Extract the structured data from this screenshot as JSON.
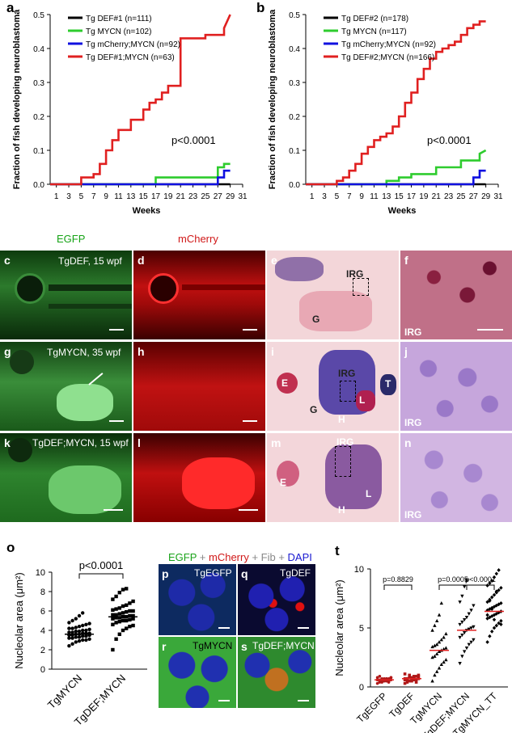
{
  "panels": {
    "a": {
      "label": "a",
      "ylabel": "Fraction of fish developing neuroblastoma",
      "xlabel": "Weeks",
      "pvalue": "p<0.0001",
      "legend": [
        {
          "text": "Tg DEF#1 (n=111)",
          "color": "#000000"
        },
        {
          "text": "Tg MYCN (n=102)",
          "color": "#2ecc2e"
        },
        {
          "text": "Tg mCherry;MYCN (n=92)",
          "color": "#1010e0"
        },
        {
          "text": "Tg DEF#1;MYCN (n=63)",
          "color": "#e02020"
        }
      ]
    },
    "b": {
      "label": "b",
      "ylabel": "Fraction of fish developing neuroblastoma",
      "xlabel": "Weeks",
      "pvalue": "p<0.0001",
      "legend": [
        {
          "text": "Tg DEF#2 (n=178)",
          "color": "#000000"
        },
        {
          "text": "Tg MYCN (n=117)",
          "color": "#2ecc2e"
        },
        {
          "text": "Tg mCherry;MYCN (n=92)",
          "color": "#1010e0"
        },
        {
          "text": "Tg DEF#2;MYCN (n=166)",
          "color": "#e02020"
        }
      ]
    },
    "images": {
      "egfp_header": "EGFP",
      "mcherry_header": "mCherry",
      "c": {
        "label": "c",
        "caption": "TgDEF, 15 wpf"
      },
      "d": {
        "label": "d"
      },
      "e": {
        "label": "e",
        "irg": "IRG",
        "g": "G"
      },
      "f": {
        "label": "f",
        "irg": "IRG"
      },
      "g": {
        "label": "g",
        "caption": "TgMYCN, 35 wpf"
      },
      "h": {
        "label": "h"
      },
      "i": {
        "label": "i",
        "irg": "IRG",
        "e": "E",
        "g": "G",
        "h": "H",
        "l": "L",
        "t": "T"
      },
      "j": {
        "label": "j",
        "irg": "IRG"
      },
      "k": {
        "label": "k",
        "caption": "TgDEF;MYCN, 15 wpf"
      },
      "l": {
        "label": "l"
      },
      "m": {
        "label": "m",
        "irg": "IRG",
        "e": "E",
        "h": "H",
        "l": "L"
      },
      "n": {
        "label": "n",
        "irg": "IRG"
      }
    },
    "o": {
      "label": "o",
      "ylabel": "Nucleolar area (μm²)",
      "pvalue": "p<0.0001"
    },
    "pqrs": {
      "title_egfp": "EGFP",
      "title_plus1": " + ",
      "title_mcherry": "mCherry",
      "title_plus2": " + Fib + ",
      "title_dapi": "DAPI",
      "p": {
        "label": "p",
        "caption": "TgEGFP"
      },
      "q": {
        "label": "q",
        "caption": "TgDEF"
      },
      "r": {
        "label": "r",
        "caption": "TgMYCN"
      },
      "s": {
        "label": "s",
        "caption": "TgDEF;MYCN"
      }
    },
    "t": {
      "label": "t",
      "ylabel": "Nucleolar area (μm²)",
      "p1": "p=0.8829",
      "p2": "p=0.0005",
      "p3": "p<0.0001"
    }
  },
  "chart_data": [
    {
      "type": "line",
      "id": "a",
      "xlabel": "Weeks",
      "ylabel": "Fraction of fish developing neuroblastoma",
      "xlim": [
        0,
        31
      ],
      "ylim": [
        0,
        0.5
      ],
      "xticks": [
        "1",
        "3",
        "5",
        "7",
        "9",
        "11",
        "13",
        "15",
        "17",
        "19",
        "21",
        "23",
        "25",
        "27",
        "29",
        "31"
      ],
      "yticks": [
        "0.0",
        "0.1",
        "0.2",
        "0.3",
        "0.4",
        "0.5"
      ],
      "series": [
        {
          "name": "Tg DEF#1 (n=111)",
          "color": "#000000",
          "x": [
            0,
            29
          ],
          "y": [
            0,
            0
          ]
        },
        {
          "name": "Tg MYCN (n=102)",
          "color": "#2ecc2e",
          "x": [
            0,
            17,
            17,
            27,
            27,
            28,
            28,
            29
          ],
          "y": [
            0,
            0,
            0.02,
            0.02,
            0.05,
            0.05,
            0.06,
            0.06
          ]
        },
        {
          "name": "Tg mCherry;MYCN (n=92)",
          "color": "#1010e0",
          "x": [
            0,
            27,
            27,
            28,
            28,
            29
          ],
          "y": [
            0,
            0,
            0.02,
            0.02,
            0.04,
            0.04
          ]
        },
        {
          "name": "Tg DEF#1;MYCN (n=63)",
          "color": "#e02020",
          "x": [
            0,
            5,
            5,
            7,
            7,
            8,
            8,
            9,
            9,
            10,
            10,
            11,
            11,
            13,
            13,
            15,
            15,
            16,
            16,
            17,
            17,
            18,
            18,
            19,
            19,
            21,
            21,
            25,
            25,
            28,
            28,
            29
          ],
          "y": [
            0,
            0,
            0.02,
            0.02,
            0.03,
            0.03,
            0.06,
            0.06,
            0.1,
            0.1,
            0.13,
            0.13,
            0.16,
            0.16,
            0.19,
            0.19,
            0.22,
            0.22,
            0.24,
            0.24,
            0.25,
            0.25,
            0.27,
            0.27,
            0.29,
            0.29,
            0.43,
            0.43,
            0.44,
            0.44,
            0.46,
            0.5
          ]
        }
      ]
    },
    {
      "type": "line",
      "id": "b",
      "xlabel": "Weeks",
      "ylabel": "Fraction of fish developing neuroblastoma",
      "xlim": [
        0,
        31
      ],
      "ylim": [
        0,
        0.5
      ],
      "xticks": [
        "1",
        "3",
        "5",
        "7",
        "9",
        "11",
        "13",
        "15",
        "17",
        "19",
        "21",
        "23",
        "25",
        "27",
        "29",
        "31"
      ],
      "yticks": [
        "0.0",
        "0.1",
        "0.2",
        "0.3",
        "0.4",
        "0.5"
      ],
      "series": [
        {
          "name": "Tg DEF#2 (n=178)",
          "color": "#000000",
          "x": [
            0,
            29
          ],
          "y": [
            0,
            0
          ]
        },
        {
          "name": "Tg MYCN (n=117)",
          "color": "#2ecc2e",
          "x": [
            0,
            13,
            13,
            15,
            15,
            17,
            17,
            21,
            21,
            25,
            25,
            28,
            28,
            29
          ],
          "y": [
            0,
            0,
            0.01,
            0.01,
            0.02,
            0.02,
            0.03,
            0.03,
            0.05,
            0.05,
            0.07,
            0.07,
            0.09,
            0.1
          ]
        },
        {
          "name": "Tg mCherry;MYCN (n=92)",
          "color": "#1010e0",
          "x": [
            0,
            27,
            27,
            28,
            28,
            29
          ],
          "y": [
            0,
            0,
            0.02,
            0.02,
            0.04,
            0.04
          ]
        },
        {
          "name": "Tg DEF#2;MYCN (n=166)",
          "color": "#e02020",
          "x": [
            0,
            5,
            5,
            6,
            6,
            7,
            7,
            8,
            8,
            9,
            9,
            10,
            10,
            11,
            11,
            12,
            12,
            13,
            13,
            14,
            14,
            15,
            15,
            16,
            16,
            17,
            17,
            18,
            18,
            19,
            19,
            20,
            20,
            21,
            21,
            22,
            22,
            23,
            23,
            24,
            24,
            25,
            25,
            26,
            26,
            27,
            27,
            28,
            28,
            29
          ],
          "y": [
            0,
            0,
            0.01,
            0.01,
            0.02,
            0.02,
            0.04,
            0.04,
            0.06,
            0.06,
            0.09,
            0.09,
            0.11,
            0.11,
            0.13,
            0.13,
            0.14,
            0.14,
            0.15,
            0.15,
            0.17,
            0.17,
            0.2,
            0.2,
            0.24,
            0.24,
            0.27,
            0.27,
            0.31,
            0.31,
            0.34,
            0.34,
            0.37,
            0.37,
            0.39,
            0.39,
            0.4,
            0.4,
            0.41,
            0.41,
            0.42,
            0.42,
            0.44,
            0.44,
            0.46,
            0.46,
            0.47,
            0.47,
            0.48,
            0.48
          ]
        }
      ]
    },
    {
      "type": "scatter",
      "id": "o",
      "ylabel": "Nucleolar area (μm²)",
      "categories": [
        "TgMYCN",
        "TgDEF;MYCN"
      ],
      "ylim": [
        0,
        10
      ],
      "yticks": [
        "0",
        "2",
        "4",
        "6",
        "8",
        "10"
      ],
      "means": [
        3.6,
        5.4
      ],
      "series": [
        {
          "category": "TgMYCN",
          "values": [
            2.4,
            2.6,
            2.8,
            2.9,
            3.0,
            3.0,
            3.1,
            3.2,
            3.2,
            3.3,
            3.3,
            3.4,
            3.4,
            3.5,
            3.5,
            3.5,
            3.6,
            3.6,
            3.7,
            3.7,
            3.7,
            3.8,
            3.8,
            3.9,
            3.9,
            4.0,
            4.0,
            4.1,
            4.2,
            4.2,
            4.3,
            4.4,
            4.5,
            4.6,
            4.7,
            4.8,
            5.0,
            5.2,
            5.5,
            5.8
          ]
        },
        {
          "category": "TgDEF;MYCN",
          "values": [
            2.0,
            3.1,
            3.6,
            4.0,
            4.2,
            4.4,
            4.5,
            4.6,
            4.8,
            4.9,
            5.0,
            5.0,
            5.1,
            5.2,
            5.2,
            5.3,
            5.3,
            5.4,
            5.4,
            5.5,
            5.5,
            5.6,
            5.6,
            5.7,
            5.8,
            5.9,
            6.0,
            6.0,
            6.1,
            6.2,
            6.3,
            6.5,
            6.6,
            6.8,
            7.0,
            7.2,
            7.5,
            7.9,
            8.2,
            8.3
          ]
        }
      ]
    },
    {
      "type": "scatter",
      "id": "t",
      "ylabel": "Nucleolar area (μm²)",
      "categories": [
        "TgEGFP",
        "TgDEF",
        "TgMYCN",
        "TgDEF;MYCN",
        "TgMYCN_TT"
      ],
      "ylim": [
        0,
        10
      ],
      "yticks": [
        "0",
        "5",
        "10"
      ],
      "means": [
        0.6,
        0.7,
        3.1,
        4.8,
        6.4
      ],
      "series": [
        {
          "category": "TgEGFP",
          "values": [
            0.3,
            0.4,
            0.4,
            0.5,
            0.5,
            0.5,
            0.6,
            0.6,
            0.6,
            0.6,
            0.7,
            0.7,
            0.7,
            0.8,
            0.8,
            0.9,
            0.5,
            0.6,
            0.7,
            0.4,
            0.8,
            0.6,
            0.5,
            0.7
          ]
        },
        {
          "category": "TgDEF",
          "values": [
            0.3,
            0.4,
            0.5,
            0.5,
            0.6,
            0.6,
            0.7,
            0.7,
            0.7,
            0.8,
            0.8,
            0.9,
            0.9,
            1.0,
            1.1,
            0.6,
            0.5,
            0.7,
            0.8,
            0.4,
            0.9,
            0.6,
            0.7,
            1.0
          ]
        },
        {
          "category": "TgMYCN",
          "values": [
            0.5,
            1.0,
            1.3,
            1.6,
            1.9,
            2.1,
            2.3,
            2.5,
            2.6,
            2.8,
            3.0,
            3.1,
            3.2,
            3.3,
            3.4,
            3.5,
            3.6,
            3.8,
            4.0,
            4.2,
            4.5,
            4.8,
            5.2,
            5.6,
            6.1,
            7.1
          ]
        },
        {
          "category": "TgDEF;MYCN",
          "values": [
            2.0,
            2.6,
            3.0,
            3.3,
            3.6,
            3.8,
            4.0,
            4.2,
            4.4,
            4.6,
            4.8,
            4.9,
            5.0,
            5.1,
            5.3,
            5.5,
            5.7,
            5.9,
            6.2,
            6.5,
            6.9,
            7.2,
            7.7,
            8.5,
            9.0
          ]
        },
        {
          "category": "TgMYCN_TT",
          "values": [
            3.8,
            4.3,
            4.7,
            5.0,
            5.2,
            5.4,
            5.6,
            5.8,
            5.9,
            6.0,
            6.1,
            6.2,
            6.3,
            6.4,
            6.5,
            6.6,
            6.7,
            6.8,
            6.9,
            7.0,
            7.1,
            7.2,
            7.4,
            7.6,
            7.8,
            8.0,
            8.2,
            8.4,
            8.6,
            8.8,
            9.0,
            9.3,
            9.6,
            9.9,
            5.3,
            6.1,
            7.3,
            6.6,
            5.7,
            8.1
          ]
        }
      ]
    }
  ]
}
